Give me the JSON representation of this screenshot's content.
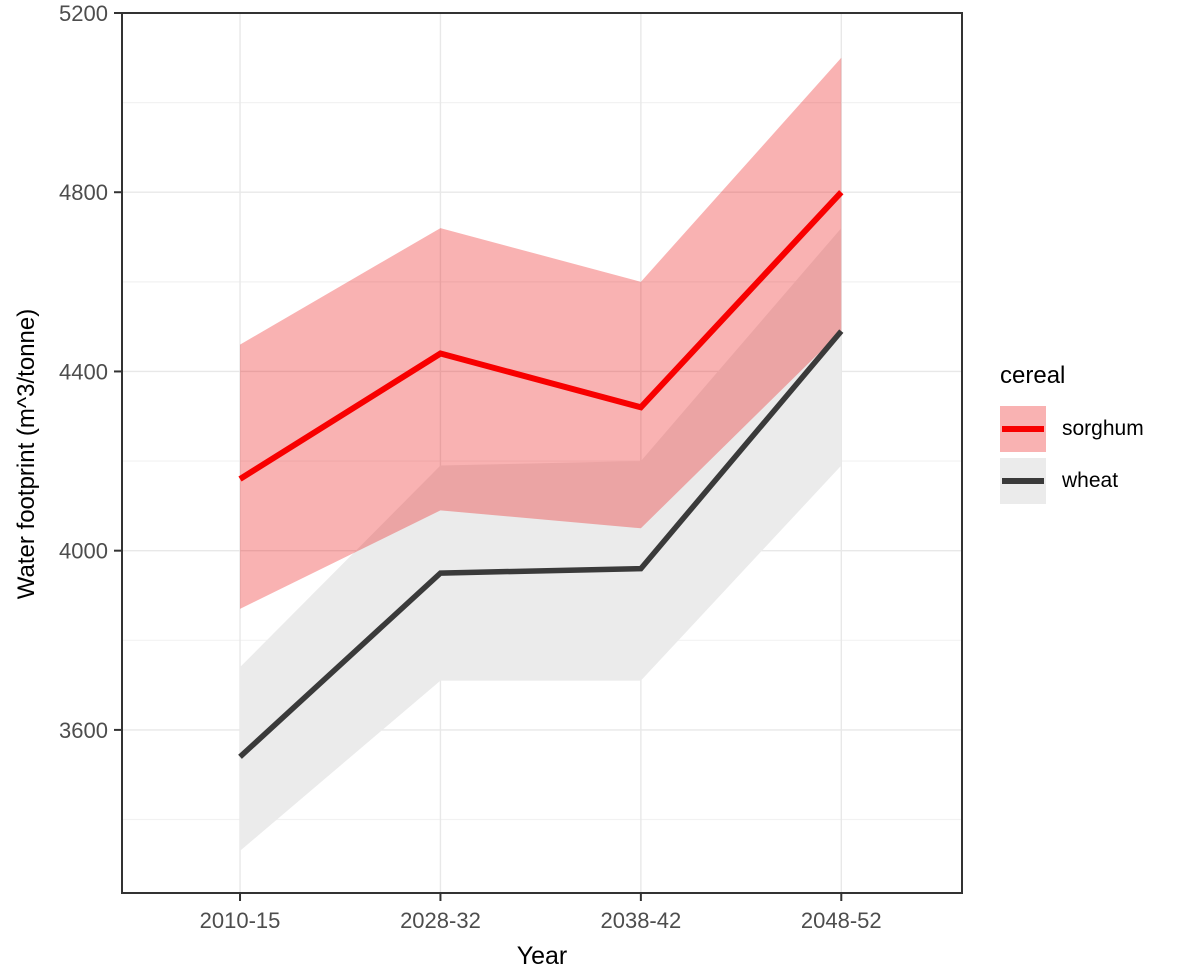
{
  "chart_data": {
    "type": "line",
    "title": "",
    "xlabel": "Year",
    "ylabel": "Water footprint (m^3/tonne)",
    "categories": [
      "2010-15",
      "2028-32",
      "2038-42",
      "2048-52"
    ],
    "series": [
      {
        "name": "sorghum",
        "values": [
          4160,
          4440,
          4320,
          4800
        ],
        "lower": [
          3870,
          4090,
          4050,
          4490
        ],
        "upper": [
          4460,
          4720,
          4600,
          5100
        ],
        "line_color": "#f80000",
        "ribbon_color": "rgba(235,0,0,0.30)",
        "line_width": 6
      },
      {
        "name": "wheat",
        "values": [
          3540,
          3950,
          3960,
          4490
        ],
        "lower": [
          3330,
          3710,
          3710,
          4190
        ],
        "upper": [
          3740,
          4190,
          4200,
          4720
        ],
        "line_color": "#3a3a3a",
        "ribbon_color": "#ebebeb",
        "line_width": 5.5
      }
    ],
    "ylim": [
      3236,
      5200
    ],
    "yticks_major": [
      3600,
      4000,
      4400,
      4800,
      5200
    ],
    "yticks_minor": [
      3400,
      3800,
      4200,
      4600,
      5000
    ],
    "ytick_labels": [
      "3600",
      "4000",
      "4400",
      "4800",
      "5200"
    ],
    "grid": true,
    "legend_position": "right",
    "legend_title": "cereal",
    "panel_border_color": "#333333",
    "tick_label_color": "#4d4d4d",
    "grid_major_color": "#e8e8e8",
    "grid_minor_color": "#f2f2f2"
  },
  "legend": {
    "title": "cereal",
    "items": [
      {
        "label": "sorghum"
      },
      {
        "label": "wheat"
      }
    ]
  }
}
